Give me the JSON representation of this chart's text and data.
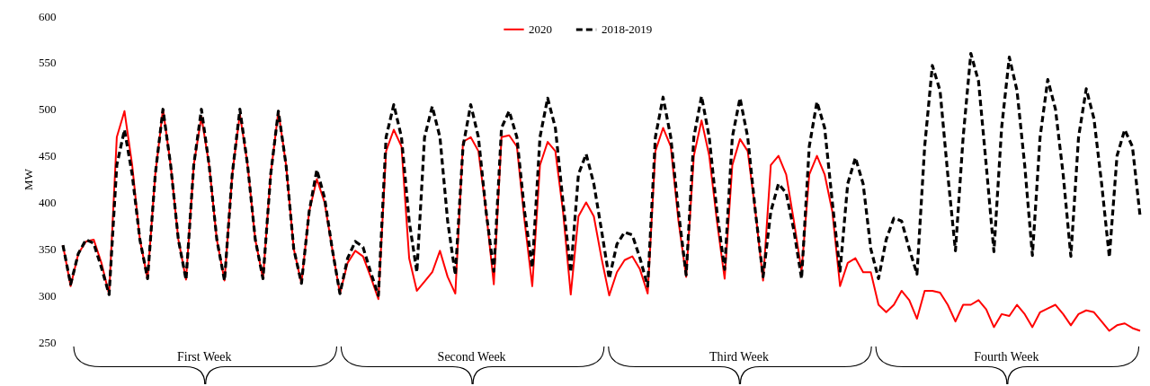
{
  "chart_data": {
    "type": "line",
    "ylabel": "MW",
    "categories": [
      null,
      null,
      null,
      null,
      null,
      null,
      null,
      null,
      null,
      null,
      null,
      null,
      null,
      null,
      null,
      null,
      null,
      null,
      null,
      null,
      null,
      null,
      null,
      null,
      null,
      null,
      null,
      null,
      null,
      null,
      null,
      null,
      null,
      null,
      null,
      null,
      null,
      null,
      null,
      null,
      null,
      null,
      null,
      null,
      null,
      null,
      null,
      null,
      null,
      null,
      null,
      null,
      null,
      null,
      null,
      null,
      null,
      null,
      null,
      null,
      null,
      null,
      null,
      null,
      null,
      null,
      null,
      null,
      null,
      null,
      null,
      null,
      null,
      null,
      null,
      null,
      null,
      null,
      null,
      null,
      null,
      null,
      null,
      null,
      null,
      null,
      null,
      null,
      null,
      null,
      null,
      null,
      null,
      null,
      null,
      null,
      null,
      null,
      null,
      null,
      null,
      null,
      null,
      null,
      null,
      null,
      null,
      null,
      null,
      null,
      null,
      null,
      null,
      null,
      null,
      null,
      null,
      null,
      null,
      null,
      null,
      null,
      null,
      null,
      null,
      null,
      null,
      null,
      null,
      null,
      null,
      null,
      null,
      null,
      null,
      null,
      null,
      null,
      null,
      null,
      null
    ],
    "ylim": [
      250,
      600
    ],
    "yticks": [
      250,
      300,
      350,
      400,
      450,
      500,
      550,
      600
    ],
    "legend": "top",
    "series": [
      {
        "name": "2020",
        "color": "#ff0000",
        "line_style": "solid",
        "values": [
          354,
          310,
          345,
          358,
          360,
          335,
          301,
          470,
          498,
          440,
          360,
          318,
          430,
          500,
          440,
          360,
          317,
          440,
          492,
          440,
          360,
          316,
          430,
          495,
          440,
          360,
          318,
          430,
          498,
          440,
          350,
          313,
          390,
          425,
          400,
          350,
          302,
          335,
          348,
          342,
          320,
          296,
          455,
          478,
          460,
          340,
          305,
          315,
          325,
          348,
          320,
          302,
          465,
          470,
          455,
          390,
          312,
          470,
          472,
          460,
          380,
          310,
          440,
          465,
          455,
          390,
          301,
          385,
          400,
          385,
          340,
          300,
          325,
          338,
          342,
          328,
          302,
          455,
          480,
          460,
          380,
          320,
          450,
          488,
          450,
          380,
          318,
          440,
          468,
          455,
          390,
          316,
          440,
          450,
          430,
          380,
          326,
          430,
          450,
          430,
          390,
          310,
          335,
          340,
          325,
          325,
          290,
          282,
          290,
          305,
          295,
          275,
          305,
          305,
          303,
          290,
          272,
          290,
          290,
          295,
          285,
          266,
          280,
          278,
          290,
          280,
          266,
          282,
          286,
          290,
          280,
          268,
          280,
          284,
          282,
          272,
          262,
          268,
          270,
          265,
          262
        ]
      },
      {
        "name": "2018-2019",
        "color": "#000000",
        "line_style": "dashed",
        "values": [
          354,
          312,
          345,
          360,
          356,
          330,
          301,
          440,
          478,
          430,
          360,
          318,
          430,
          500,
          440,
          360,
          317,
          440,
          500,
          440,
          360,
          316,
          430,
          500,
          440,
          360,
          318,
          430,
          498,
          440,
          350,
          313,
          390,
          435,
          405,
          350,
          302,
          340,
          358,
          352,
          325,
          300,
          470,
          505,
          470,
          380,
          325,
          470,
          503,
          470,
          380,
          322,
          460,
          505,
          470,
          390,
          326,
          480,
          498,
          470,
          390,
          330,
          470,
          512,
          480,
          400,
          325,
          430,
          452,
          420,
          370,
          318,
          355,
          368,
          365,
          340,
          310,
          470,
          513,
          470,
          390,
          322,
          470,
          514,
          470,
          390,
          328,
          470,
          512,
          470,
          390,
          320,
          390,
          420,
          410,
          370,
          318,
          460,
          508,
          480,
          400,
          326,
          420,
          448,
          420,
          350,
          318,
          360,
          383,
          380,
          350,
          323,
          460,
          547,
          520,
          430,
          348,
          470,
          560,
          530,
          440,
          347,
          480,
          556,
          520,
          440,
          343,
          470,
          532,
          500,
          430,
          342,
          470,
          522,
          490,
          420,
          341,
          450,
          478,
          460,
          385
        ]
      }
    ],
    "annotations": [
      "First Week",
      "Second Week",
      "Third Week",
      "Fourth Week"
    ]
  }
}
